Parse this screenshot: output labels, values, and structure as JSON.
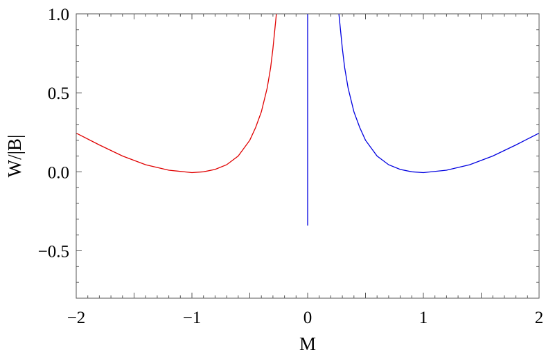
{
  "chart_data": {
    "type": "line",
    "title": "",
    "xlabel": "M",
    "ylabel": "W/|B|",
    "xlim": [
      -2,
      2
    ],
    "ylim": [
      -0.8,
      1.0
    ],
    "x_ticks": [
      -2,
      -1,
      0,
      1,
      2
    ],
    "x_tick_labels": [
      "−2",
      "−1",
      "0",
      "1",
      "2"
    ],
    "y_ticks": [
      -0.5,
      0.0,
      0.5,
      1.0
    ],
    "y_tick_labels": [
      "−0.5",
      "0.0",
      "0.5",
      "1.0"
    ],
    "grid": false,
    "legend": "none",
    "series": [
      {
        "color": "#e00000",
        "x": [
          -2.0,
          -1.8,
          -1.6,
          -1.4,
          -1.2,
          -1.0,
          -0.9,
          -0.8,
          -0.7,
          -0.6,
          -0.5,
          -0.45,
          -0.4,
          -0.35,
          -0.32,
          -0.3,
          -0.27
        ],
        "y": [
          0.245,
          0.17,
          0.1,
          0.045,
          0.01,
          -0.005,
          0.0,
          0.015,
          0.045,
          0.1,
          0.2,
          0.28,
          0.38,
          0.53,
          0.66,
          0.78,
          1.0
        ]
      },
      {
        "color": "#0000e0",
        "x": [
          0.27,
          0.3,
          0.32,
          0.35,
          0.4,
          0.45,
          0.5,
          0.6,
          0.7,
          0.8,
          0.9,
          1.0,
          1.2,
          1.4,
          1.6,
          1.8,
          2.0
        ],
        "y": [
          1.0,
          0.78,
          0.66,
          0.53,
          0.38,
          0.28,
          0.2,
          0.1,
          0.045,
          0.015,
          0.0,
          -0.005,
          0.01,
          0.045,
          0.1,
          0.17,
          0.245
        ]
      },
      {
        "color": "#0000e0",
        "x": [
          0.0,
          0.0
        ],
        "y": [
          -0.34,
          1.0
        ]
      }
    ]
  }
}
